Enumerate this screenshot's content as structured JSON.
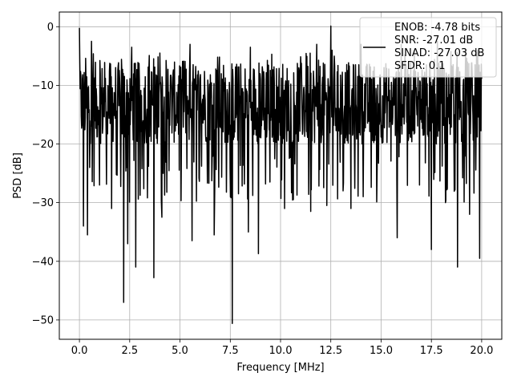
{
  "chart_data": {
    "type": "line",
    "title": "",
    "xlabel": "Frequency [MHz]",
    "ylabel": "PSD [dB]",
    "xlim": [
      -1.0,
      21.0
    ],
    "ylim": [
      -53.3,
      2.5
    ],
    "x_ticks": [
      0.0,
      2.5,
      5.0,
      7.5,
      10.0,
      12.5,
      15.0,
      17.5,
      20.0
    ],
    "x_tick_labels": [
      "0.0",
      "2.5",
      "5.0",
      "7.5",
      "10.0",
      "12.5",
      "15.0",
      "17.5",
      "20.0"
    ],
    "y_ticks": [
      0,
      -10,
      -20,
      -30,
      -40,
      -50
    ],
    "y_tick_labels": [
      "0",
      "−10",
      "−20",
      "−30",
      "−40",
      "−50"
    ],
    "grid": true,
    "legend_position": "top-right",
    "legend_lines": [
      "ENOB: -4.78 bits",
      "SNR: -27.01 dB",
      "SINAD: -27.03 dB",
      "SFDR: 0.1"
    ],
    "series": [
      {
        "color": "#000000",
        "x_start": 0.0,
        "x_end": 20.0,
        "typical_range": [
          -20,
          -6
        ],
        "peaks": [
          {
            "x": 0.0,
            "y": -0.2
          },
          {
            "x": 0.6,
            "y": -2.5
          },
          {
            "x": 2.6,
            "y": -3.5
          },
          {
            "x": 4.0,
            "y": -4.5
          },
          {
            "x": 5.5,
            "y": -3.0
          },
          {
            "x": 6.7,
            "y": -1.5
          },
          {
            "x": 8.5,
            "y": -3.5
          },
          {
            "x": 10.2,
            "y": -2.0
          },
          {
            "x": 11.8,
            "y": -3.0
          },
          {
            "x": 12.5,
            "y": 0.1
          },
          {
            "x": 14.0,
            "y": -3.0
          },
          {
            "x": 16.0,
            "y": -3.0
          },
          {
            "x": 17.8,
            "y": -2.5
          },
          {
            "x": 19.2,
            "y": -4.0
          }
        ],
        "dips": [
          {
            "x": 0.2,
            "y": -34.0
          },
          {
            "x": 0.4,
            "y": -35.5
          },
          {
            "x": 1.0,
            "y": -27.0
          },
          {
            "x": 1.6,
            "y": -31.0
          },
          {
            "x": 2.2,
            "y": -47.0
          },
          {
            "x": 2.4,
            "y": -37.0
          },
          {
            "x": 2.8,
            "y": -41.0
          },
          {
            "x": 3.7,
            "y": -42.8
          },
          {
            "x": 4.1,
            "y": -32.5
          },
          {
            "x": 5.6,
            "y": -36.5
          },
          {
            "x": 6.7,
            "y": -35.5
          },
          {
            "x": 7.6,
            "y": -50.6
          },
          {
            "x": 8.4,
            "y": -35.0
          },
          {
            "x": 8.9,
            "y": -38.7
          },
          {
            "x": 10.2,
            "y": -31.0
          },
          {
            "x": 11.5,
            "y": -31.5
          },
          {
            "x": 12.3,
            "y": -30.5
          },
          {
            "x": 13.5,
            "y": -31.0
          },
          {
            "x": 15.8,
            "y": -36.0
          },
          {
            "x": 17.5,
            "y": -38.0
          },
          {
            "x": 18.2,
            "y": -30.0
          },
          {
            "x": 18.8,
            "y": -41.0
          },
          {
            "x": 19.4,
            "y": -32.0
          },
          {
            "x": 19.9,
            "y": -39.5
          }
        ]
      }
    ]
  }
}
